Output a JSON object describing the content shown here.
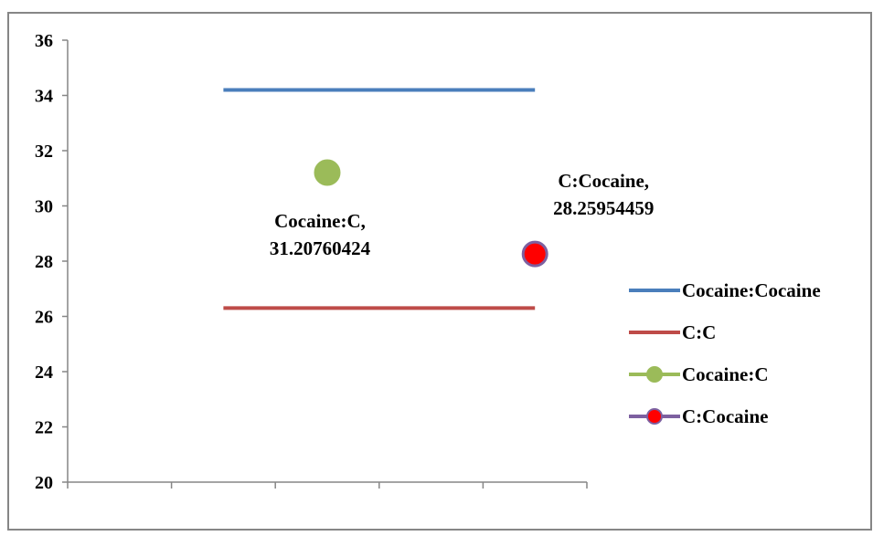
{
  "chart_data": {
    "type": "line",
    "title": "",
    "xlabel": "",
    "ylabel": "",
    "ylim": [
      20,
      36
    ],
    "yticks": [
      20,
      22,
      24,
      26,
      28,
      30,
      32,
      34,
      36
    ],
    "y_tick_labels": [
      "20",
      "22",
      "24",
      "26",
      "28",
      "30",
      "32",
      "34",
      "36"
    ],
    "x_categories": 5,
    "grid": false,
    "legend_position": "right",
    "series": [
      {
        "name": "Cocaine:Cocaine",
        "kind": "line",
        "color": "#4a7ebb",
        "x": [
          2,
          5
        ],
        "y": [
          34.2,
          34.2
        ]
      },
      {
        "name": "C:C",
        "kind": "line",
        "color": "#be4b48",
        "x": [
          2,
          5
        ],
        "y": [
          26.3,
          26.3
        ]
      },
      {
        "name": "Cocaine:C",
        "kind": "point",
        "color": "#9bbb59",
        "edge_color": "#9bbb59",
        "x": [
          3
        ],
        "y": [
          31.20760424
        ],
        "data_label": [
          "Cocaine:C,",
          "31.20760424"
        ]
      },
      {
        "name": "C:Cocaine",
        "kind": "point",
        "color": "#ff0000",
        "edge_color": "#7d60a0",
        "x": [
          5
        ],
        "y": [
          28.25954459
        ],
        "data_label": [
          "C:Cocaine,",
          "28.25954459"
        ]
      }
    ]
  }
}
